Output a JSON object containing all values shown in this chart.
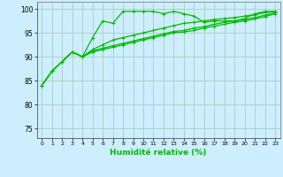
{
  "title": "",
  "xlabel": "Humidité relative (%)",
  "ylabel": "",
  "background_color": "#cceeff",
  "grid_color": "#aaccbb",
  "line_color": "#00bb00",
  "xlim": [
    -0.5,
    23.5
  ],
  "ylim": [
    73,
    101.5
  ],
  "yticks": [
    75,
    80,
    85,
    90,
    95,
    100
  ],
  "xticks": [
    0,
    1,
    2,
    3,
    4,
    5,
    6,
    7,
    8,
    9,
    10,
    11,
    12,
    13,
    14,
    15,
    16,
    17,
    18,
    19,
    20,
    21,
    22,
    23
  ],
  "series": [
    [
      84,
      87,
      89,
      91,
      90,
      94,
      97.5,
      97,
      99.5,
      99.5,
      99.5,
      99.5,
      99,
      99.5,
      99,
      98.5,
      97.2,
      97.5,
      97.5,
      97.5,
      98,
      99,
      99.5,
      99.5
    ],
    [
      84,
      87,
      89,
      91,
      90,
      91.5,
      92.5,
      93.5,
      94,
      94.5,
      95,
      95.5,
      96,
      96.5,
      97,
      97.2,
      97.5,
      97.8,
      98,
      98.2,
      98.5,
      98.8,
      99.2,
      99.5
    ],
    [
      84,
      87,
      89,
      91,
      90,
      91.2,
      91.8,
      92.3,
      92.8,
      93.3,
      93.8,
      94.3,
      94.8,
      95.3,
      95.5,
      96,
      96.3,
      96.8,
      97.2,
      97.5,
      97.8,
      98.2,
      98.7,
      99.2
    ],
    [
      84,
      87,
      89,
      91,
      90,
      91,
      91.5,
      92,
      92.5,
      93,
      93.5,
      94,
      94.5,
      95,
      95.2,
      95.5,
      96,
      96.4,
      96.8,
      97.2,
      97.5,
      97.9,
      98.4,
      99.0
    ]
  ]
}
